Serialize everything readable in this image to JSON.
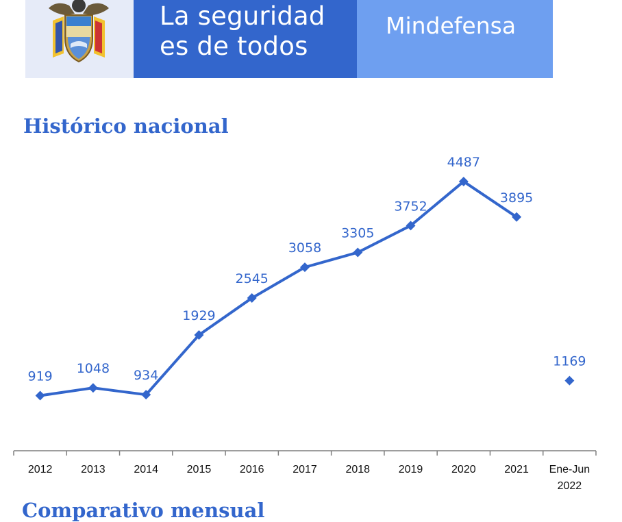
{
  "header": {
    "slogan_line1": "La seguridad",
    "slogan_line2": "es de todos",
    "brand": "Mindefensa",
    "colors": {
      "slogan_bg": "#3366cc",
      "brand_bg": "#6e9ff0",
      "seal_bg": "#e6ebf8"
    },
    "seal_icon": "colombia-coat-of-arms-icon"
  },
  "section_title": "Histórico nacional",
  "next_section_title": "Comparativo mensual",
  "chart_data": {
    "type": "line",
    "title": "Histórico nacional",
    "xlabel": "",
    "ylabel": "",
    "categories": [
      "2012",
      "2013",
      "2014",
      "2015",
      "2016",
      "2017",
      "2018",
      "2019",
      "2020",
      "2021",
      [
        "Ene-Jun",
        "2022"
      ]
    ],
    "values": [
      919,
      1048,
      934,
      1929,
      2545,
      3058,
      3305,
      3752,
      4487,
      3895,
      1169
    ],
    "connected_points": 10,
    "ylim": [
      0,
      5000
    ],
    "grid": false,
    "legend": "none",
    "color": "#3366cc",
    "marker": "diamond"
  }
}
